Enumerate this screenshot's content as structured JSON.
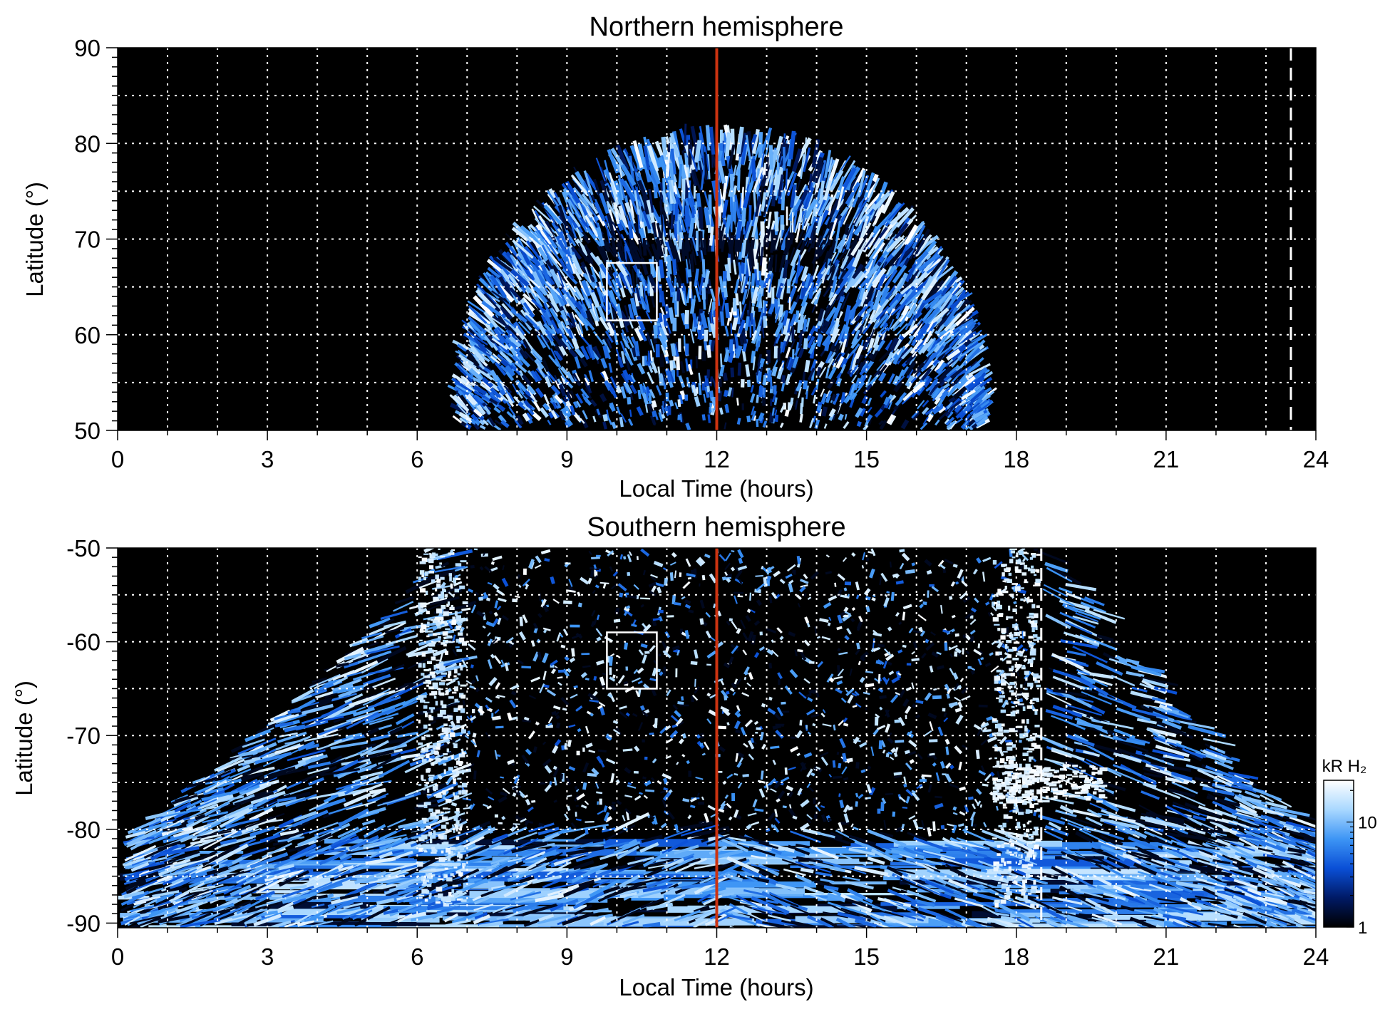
{
  "chart_data": [
    {
      "type": "heatmap",
      "title": "Northern hemisphere",
      "xlabel": "Local Time (hours)",
      "ylabel": "Latitude (°)",
      "xlim": [
        0,
        24
      ],
      "ylim": [
        50,
        90
      ],
      "xticks": [
        "0",
        "3",
        "6",
        "9",
        "12",
        "15",
        "18",
        "21",
        "24"
      ],
      "yticks": [
        "50",
        "60",
        "70",
        "80",
        "90"
      ],
      "grid": true,
      "background": "#000000",
      "emission_region": {
        "lt_min": 7.0,
        "lt_max": 17.2,
        "lat_edge": 50,
        "lat_peak": 79.5
      },
      "noon_line_lt": 12,
      "dashed_line_lt": 23.5,
      "box": {
        "lt": [
          9.8,
          10.8
        ],
        "lat": [
          61.5,
          67.5
        ]
      }
    },
    {
      "type": "heatmap",
      "title": "Southern hemisphere",
      "xlabel": "Local Time (hours)",
      "ylabel": "Latitude (°)",
      "xlim": [
        0,
        24
      ],
      "ylim": [
        -90.5,
        -50
      ],
      "xticks": [
        "0",
        "3",
        "6",
        "9",
        "12",
        "15",
        "18",
        "21",
        "24"
      ],
      "yticks": [
        "-50",
        "-60",
        "-70",
        "-80",
        "-90"
      ],
      "grid": true,
      "background": "#000000",
      "emission_region": {
        "lt_min": 0,
        "lt_max": 24,
        "lat_edge": -90.5,
        "lat_top": -50,
        "core_lt": [
          6.0,
          18.9
        ]
      },
      "noon_line_lt": 12,
      "dashed_line_lt": 18.5,
      "box": {
        "lt": [
          9.8,
          10.8
        ],
        "lat": [
          -59,
          -65
        ]
      }
    }
  ],
  "colorbar": {
    "label": "kR H₂",
    "ticks": [
      "1",
      "10"
    ],
    "scale": "log",
    "range": [
      1,
      25
    ],
    "colors": [
      "#000000",
      "#001a66",
      "#0a4fd6",
      "#3d95f5",
      "#a9d8ff",
      "#ffffff"
    ]
  },
  "colors": {
    "noon_line": "#cc3311",
    "grid": "#ffffff",
    "box": "#ffffff"
  }
}
